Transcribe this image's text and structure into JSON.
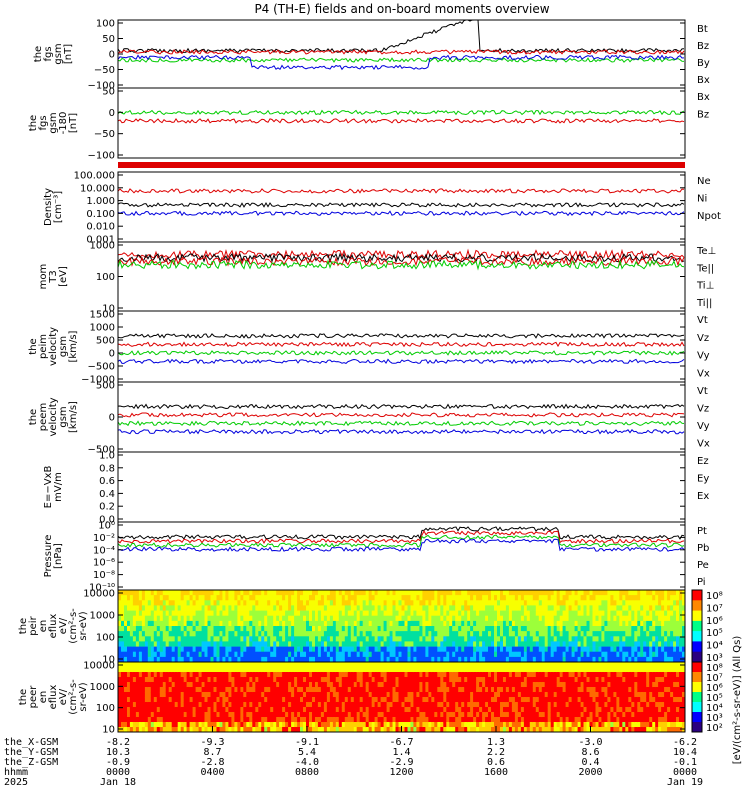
{
  "title": "P4 (TH-E) fields and on-board moments overview",
  "colors": {
    "black": "#000000",
    "red": "#dd0000",
    "green": "#00cc00",
    "blue": "#0000dd"
  },
  "chart_data": [
    {
      "id": "fgs-gsm",
      "type": "line",
      "ylabel_lines": [
        "the",
        "fgs",
        "gsm",
        "[nT]"
      ],
      "ylim": [
        -100,
        100
      ],
      "ticks": [
        "100",
        "50",
        "0",
        "−50",
        "−100"
      ],
      "series": [
        {
          "name": "Bt",
          "color": "black"
        },
        {
          "name": "Bz",
          "color": "red"
        },
        {
          "name": "By",
          "color": "green"
        },
        {
          "name": "Bx",
          "color": "blue"
        }
      ]
    },
    {
      "id": "fgs-gsm-180",
      "type": "line",
      "ylabel_lines": [
        "the",
        "fgs",
        "gsm",
        "-180",
        "[nT]"
      ],
      "ylim": [
        -130,
        60
      ],
      "ticks": [
        "50",
        "0",
        "−50",
        "−100"
      ],
      "series": [
        {
          "name": "Bx",
          "color": "green"
        },
        {
          "name": "Bz",
          "color": "red"
        }
      ]
    },
    {
      "id": "density",
      "type": "line",
      "scale": "log",
      "ylabel_lines": [
        "Density",
        "[cm⁻³]"
      ],
      "ticks": [
        "100.000",
        "10.000",
        "1.000",
        "0.100",
        "0.010",
        "0.001"
      ],
      "series": [
        {
          "name": "Ne",
          "color": "red"
        },
        {
          "name": "Ni",
          "color": "black"
        },
        {
          "name": "Npot",
          "color": "blue"
        }
      ]
    },
    {
      "id": "temperature",
      "type": "line",
      "scale": "log",
      "ylabel_lines": [
        "mom",
        "T3",
        "[eV]"
      ],
      "ticks": [
        "1000",
        "100",
        "10"
      ],
      "series": [
        {
          "name": "Te⊥",
          "color": "red"
        },
        {
          "name": "Te||",
          "color": "black"
        },
        {
          "name": "Ti⊥",
          "color": "red"
        },
        {
          "name": "Ti||",
          "color": "green"
        }
      ]
    },
    {
      "id": "peim-velocity",
      "type": "line",
      "ylabel_lines": [
        "the",
        "peim",
        "velocity",
        "gsm",
        "[km/s]"
      ],
      "ylim": [
        -1000,
        1500
      ],
      "ticks": [
        "1500",
        "1000",
        "500",
        "0",
        "−500",
        "−1000"
      ],
      "series": [
        {
          "name": "Vt",
          "color": "black"
        },
        {
          "name": "Vz",
          "color": "red"
        },
        {
          "name": "Vy",
          "color": "green"
        },
        {
          "name": "Vx",
          "color": "blue"
        }
      ]
    },
    {
      "id": "peem-velocity",
      "type": "line",
      "ylabel_lines": [
        "the",
        "peem",
        "velocity",
        "gsm",
        "[km/s]"
      ],
      "ylim": [
        -500,
        500
      ],
      "ticks": [
        "500",
        "0",
        "−500"
      ],
      "series": [
        {
          "name": "Vt",
          "color": "black"
        },
        {
          "name": "Vz",
          "color": "red"
        },
        {
          "name": "Vy",
          "color": "green"
        },
        {
          "name": "Vx",
          "color": "blue"
        }
      ]
    },
    {
      "id": "efield",
      "type": "line",
      "ylabel_lines": [
        "E=−VxB",
        "mV/m"
      ],
      "ylim": [
        0,
        1
      ],
      "ticks": [
        "1.0",
        "0.8",
        "0.6",
        "0.4",
        "0.2",
        "0.0"
      ],
      "series": [
        {
          "name": "Ez",
          "color": "red"
        },
        {
          "name": "Ey",
          "color": "green"
        },
        {
          "name": "Ex",
          "color": "blue"
        }
      ]
    },
    {
      "id": "pressure",
      "type": "line",
      "scale": "log",
      "ylabel_lines": [
        "Pressure",
        "[nPa]"
      ],
      "ticks": [
        "10⁰",
        "10⁻²",
        "10⁻⁴",
        "10⁻⁶",
        "10⁻⁸",
        "10⁻¹⁰"
      ],
      "series": [
        {
          "name": "Pt",
          "color": "black"
        },
        {
          "name": "Pb",
          "color": "red"
        },
        {
          "name": "Pe",
          "color": "green"
        },
        {
          "name": "Pi",
          "color": "blue"
        }
      ]
    },
    {
      "id": "peir-spec",
      "type": "heatmap",
      "scale": "log",
      "ylabel_lines": [
        "the",
        "peir",
        "en",
        "eflux",
        "eV/",
        "(cm²-s-",
        "sr-eV)"
      ],
      "ticks": [
        "10000",
        "1000",
        "100",
        "10"
      ],
      "colorbar_ticks": [
        "10⁸",
        "10⁷",
        "10⁶",
        "10⁵",
        "10⁴",
        "10³"
      ]
    },
    {
      "id": "peer-spec",
      "type": "heatmap",
      "scale": "log",
      "ylabel_lines": [
        "the",
        "peer",
        "en",
        "eflux",
        "eV/",
        "(cm²-s-",
        "sr-eV)"
      ],
      "ticks": [
        "10000",
        "1000",
        "100",
        "10"
      ],
      "colorbar_ticks": [
        "10⁸",
        "10⁷",
        "10⁶",
        "10⁵",
        "10⁴",
        "10³",
        "10²"
      ]
    }
  ],
  "colorbar_label": "[eV/(cm²-s-sr-eV)] (All Qs)",
  "xaxis": {
    "row_labels": [
      "the_X-GSM",
      "the_Y-GSM",
      "the_Z-GSM",
      "hhmm",
      "2025"
    ],
    "columns": [
      [
        "-8.2",
        "10.3",
        "-0.9",
        "0000",
        "Jan 18"
      ],
      [
        "-9.3",
        "8.7",
        "-2.8",
        "0400",
        ""
      ],
      [
        "-9.1",
        "5.4",
        "-4.0",
        "0800",
        ""
      ],
      [
        "-6.7",
        "1.4",
        "-2.9",
        "1200",
        ""
      ],
      [
        "1.3",
        "2.2",
        "0.6",
        "1600",
        ""
      ],
      [
        "-3.0",
        "8.6",
        "0.4",
        "2000",
        ""
      ],
      [
        "-6.2",
        "10.4",
        "-0.1",
        "0000",
        "Jan 19"
      ]
    ]
  }
}
